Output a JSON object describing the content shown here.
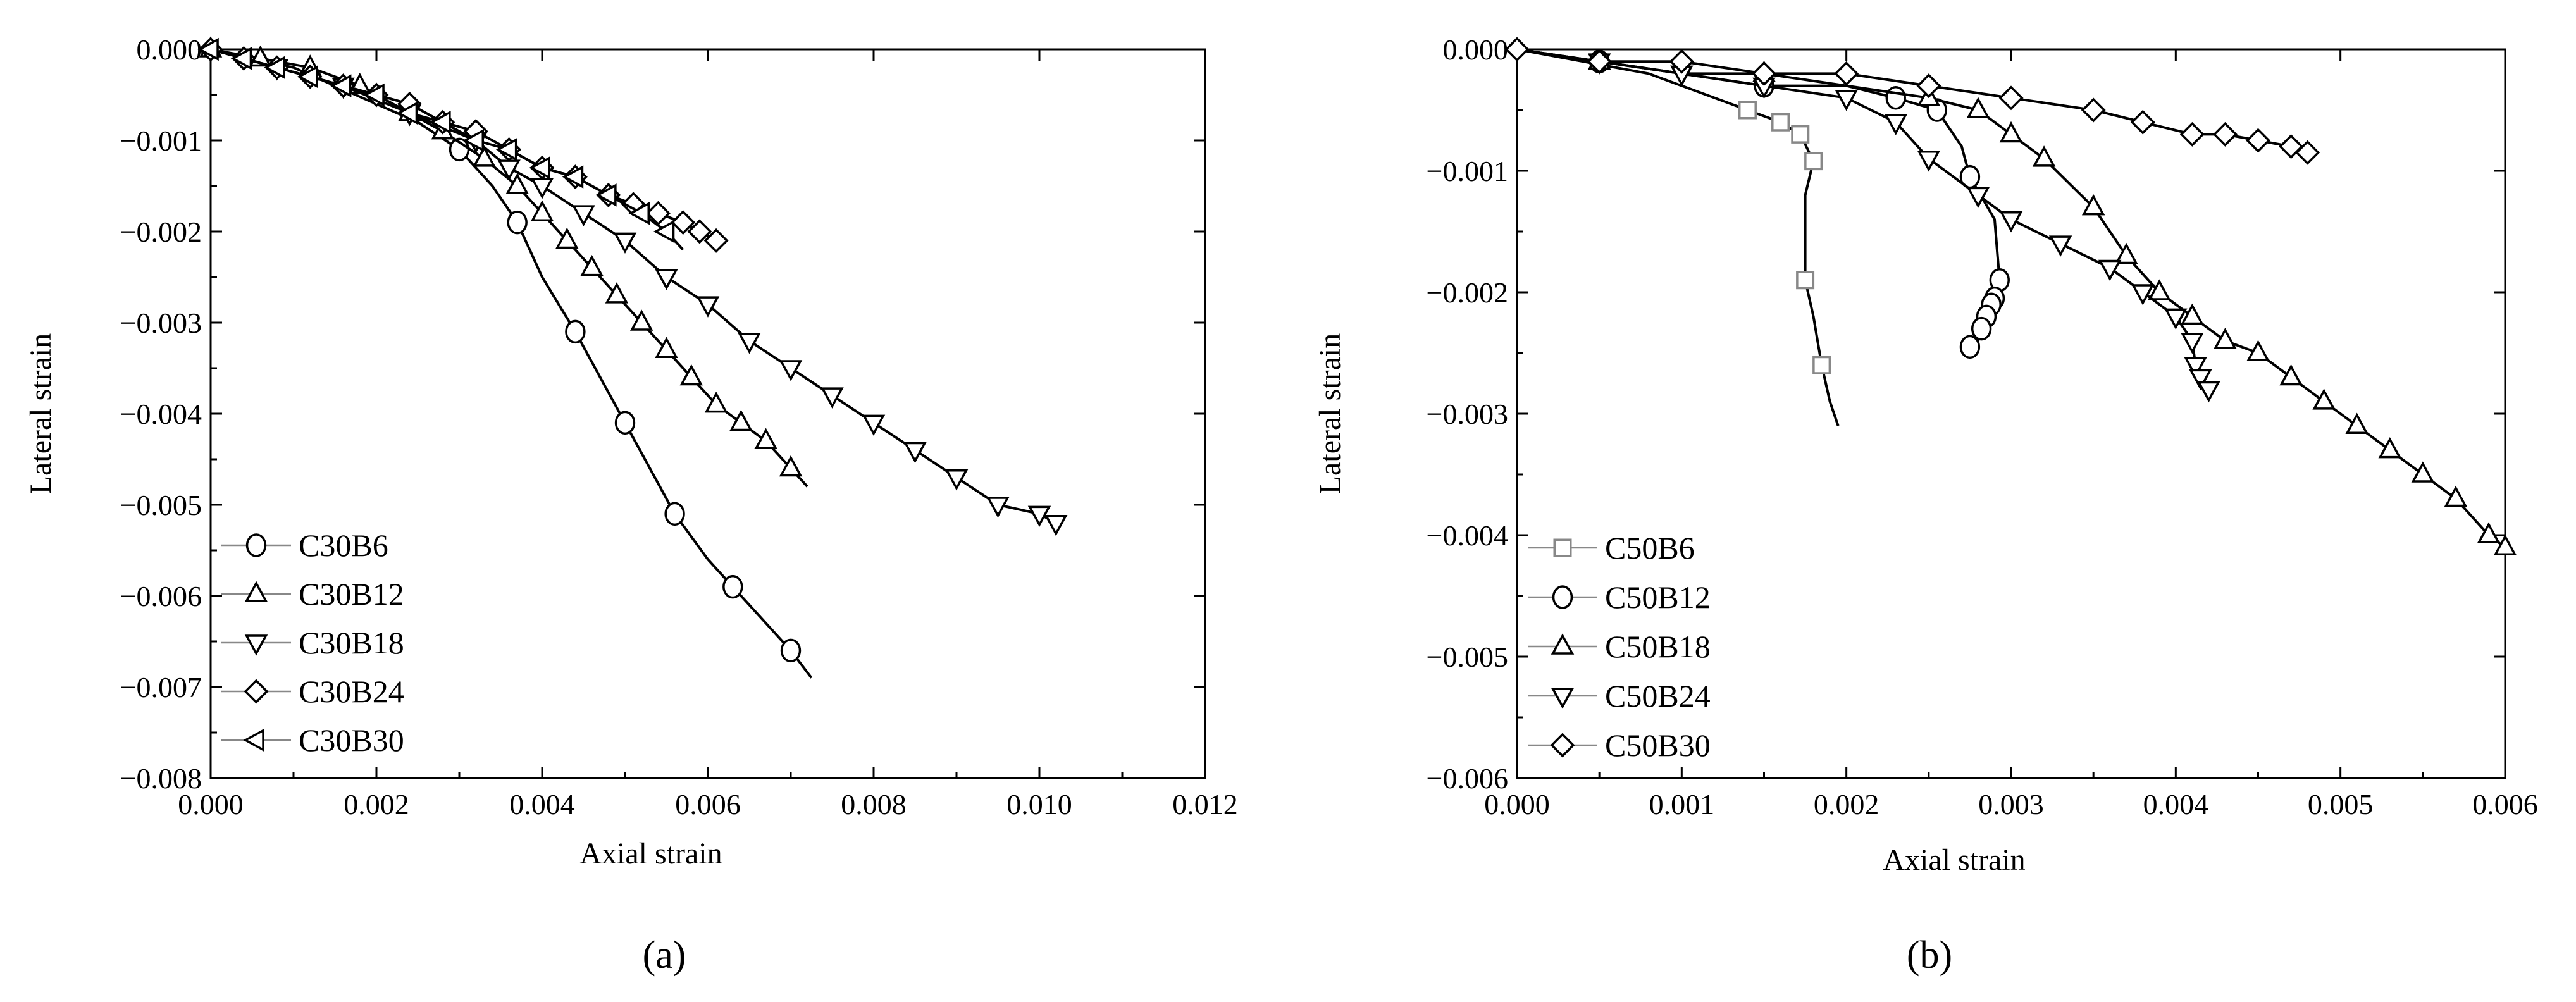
{
  "chart_data": [
    {
      "type": "line",
      "panel_label": "(a)",
      "xlabel": "Axial strain",
      "ylabel": "Lateral strain",
      "xlim": [
        0,
        0.012
      ],
      "ylim": [
        -0.008,
        0
      ],
      "x_ticks": [
        "0.000",
        "0.002",
        "0.004",
        "0.006",
        "0.008",
        "0.010",
        "0.012"
      ],
      "y_ticks": [
        "0.000",
        "−0.001",
        "−0.002",
        "−0.003",
        "−0.004",
        "−0.005",
        "−0.006",
        "−0.007",
        "−0.008"
      ],
      "grid": false,
      "legend_position": "bottom-left",
      "series": [
        {
          "name": "C30B6",
          "marker": "circle",
          "x": [
            0,
            0.0005,
            0.001,
            0.0015,
            0.002,
            0.0025,
            0.003,
            0.0034,
            0.0037,
            0.004,
            0.0044,
            0.0047,
            0.005,
            0.0053,
            0.0056,
            0.006,
            0.0063,
            0.0067,
            0.007,
            0.00725
          ],
          "y": [
            0,
            -0.0001,
            -0.0002,
            -0.0004,
            -0.0006,
            -0.0008,
            -0.0011,
            -0.0015,
            -0.0019,
            -0.0025,
            -0.0031,
            -0.0036,
            -0.0041,
            -0.0046,
            -0.0051,
            -0.0056,
            -0.0059,
            -0.0063,
            -0.0066,
            -0.0069
          ],
          "marker_idx": [
            6,
            8,
            10,
            12,
            14,
            16,
            18
          ]
        },
        {
          "name": "C30B12",
          "marker": "triangle-up",
          "x": [
            0,
            0.0006,
            0.0012,
            0.0018,
            0.0024,
            0.0028,
            0.0033,
            0.0037,
            0.004,
            0.0043,
            0.0046,
            0.0049,
            0.0052,
            0.0055,
            0.0058,
            0.0061,
            0.0064,
            0.0067,
            0.007,
            0.0072
          ],
          "y": [
            0,
            -0.0001,
            -0.0002,
            -0.0004,
            -0.0007,
            -0.0009,
            -0.0012,
            -0.0015,
            -0.0018,
            -0.0021,
            -0.0024,
            -0.0027,
            -0.003,
            -0.0033,
            -0.0036,
            -0.0039,
            -0.0041,
            -0.0043,
            -0.0046,
            -0.0048
          ],
          "marker_idx": [
            0,
            1,
            2,
            3,
            4,
            5,
            6,
            7,
            8,
            9,
            10,
            11,
            12,
            13,
            14,
            15,
            16,
            17,
            18
          ]
        },
        {
          "name": "C30B18",
          "marker": "triangle-down",
          "x": [
            0,
            0.0008,
            0.0016,
            0.0024,
            0.0032,
            0.0036,
            0.004,
            0.0045,
            0.005,
            0.0055,
            0.006,
            0.0065,
            0.007,
            0.0075,
            0.008,
            0.0085,
            0.009,
            0.0095,
            0.01,
            0.0102
          ],
          "y": [
            0,
            -0.0002,
            -0.0004,
            -0.0007,
            -0.001,
            -0.0013,
            -0.0015,
            -0.0018,
            -0.0021,
            -0.0025,
            -0.0028,
            -0.0032,
            -0.0035,
            -0.0038,
            -0.0041,
            -0.0044,
            -0.0047,
            -0.005,
            -0.0051,
            -0.0052
          ],
          "marker_idx": [
            1,
            2,
            3,
            4,
            5,
            6,
            7,
            8,
            9,
            10,
            11,
            12,
            13,
            14,
            15,
            16,
            17,
            18,
            19
          ]
        },
        {
          "name": "C30B24",
          "marker": "diamond",
          "x": [
            0,
            0.0004,
            0.0008,
            0.0012,
            0.0016,
            0.002,
            0.0024,
            0.0028,
            0.0032,
            0.0036,
            0.004,
            0.0044,
            0.0048,
            0.0051,
            0.0054,
            0.0057,
            0.0059,
            0.0061
          ],
          "y": [
            0,
            -0.0001,
            -0.0002,
            -0.0003,
            -0.0004,
            -0.0005,
            -0.0006,
            -0.0008,
            -0.0009,
            -0.0011,
            -0.0013,
            -0.0014,
            -0.0016,
            -0.0017,
            -0.0018,
            -0.0019,
            -0.002,
            -0.0021
          ],
          "marker_idx": [
            0,
            1,
            2,
            3,
            4,
            5,
            6,
            7,
            8,
            9,
            10,
            11,
            12,
            13,
            14,
            15,
            16,
            17
          ]
        },
        {
          "name": "C30B30",
          "marker": "triangle-left",
          "x": [
            0,
            0.0004,
            0.0008,
            0.0012,
            0.0016,
            0.002,
            0.0024,
            0.0028,
            0.0032,
            0.0036,
            0.004,
            0.0044,
            0.0048,
            0.0052,
            0.0055,
            0.0057
          ],
          "y": [
            0,
            -0.0001,
            -0.0002,
            -0.0003,
            -0.0004,
            -0.0005,
            -0.0007,
            -0.0008,
            -0.001,
            -0.0011,
            -0.0013,
            -0.0014,
            -0.0016,
            -0.0018,
            -0.002,
            -0.0022
          ],
          "marker_idx": [
            0,
            1,
            2,
            3,
            4,
            5,
            6,
            7,
            8,
            9,
            10,
            11,
            12,
            13,
            14
          ]
        }
      ]
    },
    {
      "type": "line",
      "panel_label": "(b)",
      "xlabel": "Axial strain",
      "ylabel": "Lateral strain",
      "xlim": [
        0,
        0.006
      ],
      "ylim": [
        -0.006,
        0
      ],
      "x_ticks": [
        "0.000",
        "0.001",
        "0.002",
        "0.003",
        "0.004",
        "0.005",
        "0.006"
      ],
      "y_ticks": [
        "0.000",
        "−0.001",
        "−0.002",
        "−0.003",
        "−0.004",
        "−0.005",
        "−0.006"
      ],
      "grid": false,
      "legend_position": "bottom-left",
      "series": [
        {
          "name": "C50B6",
          "marker": "square",
          "x": [
            0,
            0.0004,
            0.0008,
            0.0012,
            0.0014,
            0.0016,
            0.00172,
            0.0018,
            0.00175,
            0.00175,
            0.0018,
            0.00185,
            0.0019,
            0.00195
          ],
          "y": [
            0,
            -0.0001,
            -0.0002,
            -0.0004,
            -0.0005,
            -0.0006,
            -0.0007,
            -0.00092,
            -0.0012,
            -0.0019,
            -0.0022,
            -0.0026,
            -0.0029,
            -0.0031
          ],
          "marker_idx": [
            4,
            5,
            6,
            7,
            9,
            11
          ]
        },
        {
          "name": "C50B12",
          "marker": "circle",
          "x": [
            0,
            0.0005,
            0.001,
            0.0015,
            0.002,
            0.0023,
            0.00255,
            0.0027,
            0.00275,
            0.0029,
            0.00293,
            0.0029,
            0.00288,
            0.00285,
            0.00282,
            0.0028,
            0.00275
          ],
          "y": [
            0,
            -0.0001,
            -0.0002,
            -0.0003,
            -0.0003,
            -0.0004,
            -0.0005,
            -0.0008,
            -0.00105,
            -0.0014,
            -0.0019,
            -0.00205,
            -0.0021,
            -0.0022,
            -0.0023,
            -0.0024,
            -0.00245
          ],
          "marker_idx": [
            1,
            3,
            5,
            6,
            8,
            10,
            11,
            12,
            13,
            14,
            16
          ]
        },
        {
          "name": "C50B18",
          "marker": "triangle-up",
          "x": [
            0,
            0.0005,
            0.001,
            0.0015,
            0.002,
            0.0025,
            0.0028,
            0.003,
            0.0032,
            0.0035,
            0.0037,
            0.0039,
            0.0041,
            0.0043,
            0.0045,
            0.0047,
            0.0049,
            0.0051,
            0.0053,
            0.0055,
            0.0057,
            0.0059,
            0.006
          ],
          "y": [
            0,
            -0.0001,
            -0.0002,
            -0.0002,
            -0.0003,
            -0.0004,
            -0.0005,
            -0.0007,
            -0.0009,
            -0.0013,
            -0.0017,
            -0.002,
            -0.0022,
            -0.0024,
            -0.0025,
            -0.0027,
            -0.0029,
            -0.0031,
            -0.0033,
            -0.0035,
            -0.0037,
            -0.004,
            -0.0041
          ],
          "marker_idx": [
            1,
            3,
            5,
            6,
            7,
            8,
            9,
            10,
            11,
            12,
            13,
            14,
            15,
            16,
            17,
            18,
            19,
            20,
            21,
            22
          ]
        },
        {
          "name": "C50B24",
          "marker": "triangle-down",
          "x": [
            0,
            0.0005,
            0.001,
            0.0015,
            0.002,
            0.0023,
            0.0025,
            0.0028,
            0.003,
            0.0033,
            0.0036,
            0.0038,
            0.004,
            0.0041,
            0.00412,
            0.00415,
            0.0042
          ],
          "y": [
            0,
            -0.0001,
            -0.0002,
            -0.0003,
            -0.0004,
            -0.0006,
            -0.0009,
            -0.0012,
            -0.0014,
            -0.0016,
            -0.0018,
            -0.002,
            -0.0022,
            -0.0024,
            -0.0026,
            -0.0027,
            -0.0028
          ],
          "marker_idx": [
            1,
            2,
            3,
            4,
            5,
            6,
            7,
            8,
            9,
            10,
            11,
            12,
            13,
            14,
            15,
            16
          ]
        },
        {
          "name": "C50B30",
          "marker": "diamond",
          "x": [
            0,
            0.0005,
            0.001,
            0.0015,
            0.002,
            0.0025,
            0.003,
            0.0035,
            0.0038,
            0.0041,
            0.0043,
            0.0045,
            0.0047,
            0.0048
          ],
          "y": [
            0,
            -0.0001,
            -0.0001,
            -0.0002,
            -0.0002,
            -0.0003,
            -0.0004,
            -0.0005,
            -0.0006,
            -0.0007,
            -0.0007,
            -0.00075,
            -0.0008,
            -0.00085
          ],
          "marker_idx": [
            0,
            1,
            2,
            3,
            4,
            5,
            6,
            7,
            8,
            9,
            10,
            11,
            12,
            13
          ]
        }
      ]
    }
  ]
}
